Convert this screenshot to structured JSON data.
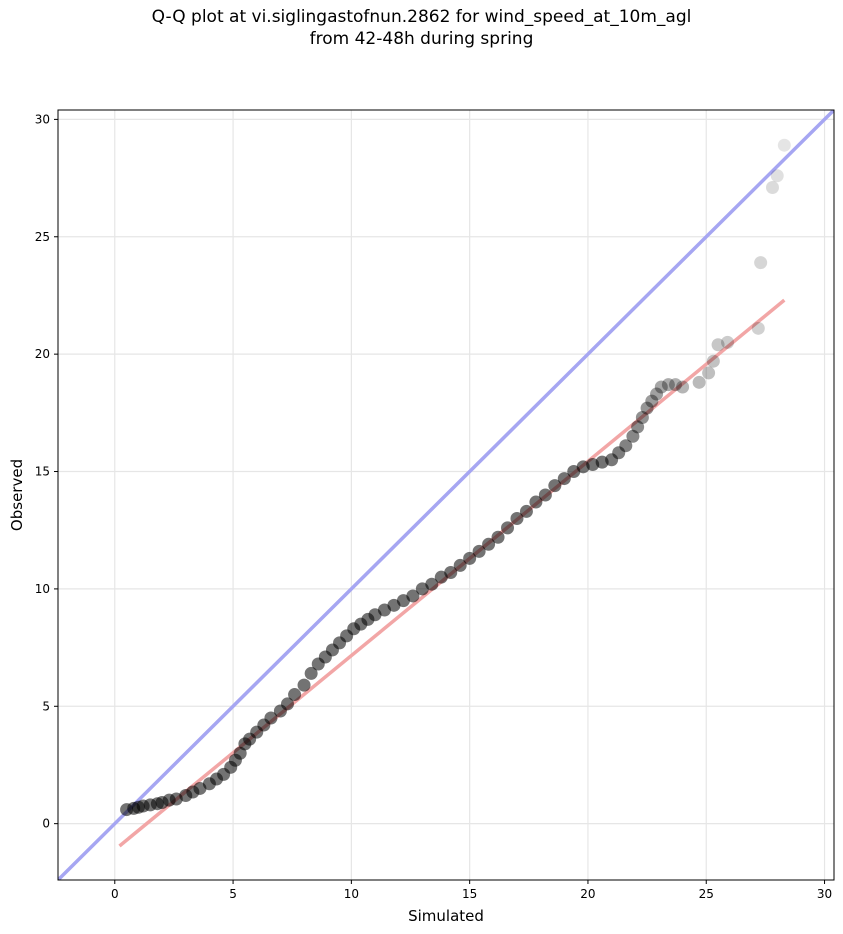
{
  "chart_data": {
    "type": "scatter",
    "title_line1": "Q-Q plot at vi.siglingastofnun.2862 for wind_speed_at_10m_agl",
    "title_line2": "from 42-48h during spring",
    "xlabel": "Simulated",
    "ylabel": "Observed",
    "xlim": [
      -2.4,
      30.4
    ],
    "ylim": [
      -2.4,
      30.4
    ],
    "xticks": [
      0,
      5,
      10,
      15,
      20,
      25,
      30
    ],
    "yticks": [
      0,
      5,
      10,
      15,
      20,
      25,
      30
    ],
    "grid": true,
    "colors": {
      "points": "#000000",
      "identity_line": "#a6a6f2",
      "fit_line": "#f2a6a6",
      "grid": "#e6e6e6"
    },
    "identity_line": {
      "x": [
        -2.4,
        30.4
      ],
      "y": [
        -2.4,
        30.4
      ]
    },
    "fit_line": {
      "x": [
        0.2,
        28.3
      ],
      "y": [
        -0.95,
        22.3
      ]
    },
    "series": [
      {
        "x": [
          0.5,
          0.8,
          1.0,
          1.2,
          1.5,
          1.8,
          2.0,
          2.3,
          2.6,
          3.0,
          3.3,
          3.6,
          4.0,
          4.3,
          4.6,
          4.9,
          5.1,
          5.3,
          5.5,
          5.7,
          6.0,
          6.3,
          6.6,
          7.0,
          7.3,
          7.6,
          8.0,
          8.3,
          8.6,
          8.9,
          9.2,
          9.5,
          9.8,
          10.1,
          10.4,
          10.7,
          11.0,
          11.4,
          11.8,
          12.2,
          12.6,
          13.0,
          13.4,
          13.8,
          14.2,
          14.6,
          15.0,
          15.4,
          15.8,
          16.2,
          16.6,
          17.0,
          17.4,
          17.8,
          18.2,
          18.6,
          19.0,
          19.4,
          19.8,
          20.2,
          20.6,
          21.0,
          21.3,
          21.6,
          21.9,
          22.1,
          22.3,
          22.5,
          22.7,
          22.9,
          23.1,
          23.4,
          23.7,
          24.0,
          24.7,
          25.1,
          25.3,
          25.5,
          25.9,
          27.2,
          27.3,
          27.8,
          28.0,
          28.3
        ],
        "y": [
          0.6,
          0.65,
          0.7,
          0.75,
          0.8,
          0.85,
          0.9,
          1.0,
          1.05,
          1.2,
          1.35,
          1.5,
          1.7,
          1.9,
          2.1,
          2.4,
          2.7,
          3.0,
          3.4,
          3.6,
          3.9,
          4.2,
          4.5,
          4.8,
          5.1,
          5.5,
          5.9,
          6.4,
          6.8,
          7.1,
          7.4,
          7.7,
          8.0,
          8.3,
          8.5,
          8.7,
          8.9,
          9.1,
          9.3,
          9.5,
          9.7,
          10.0,
          10.2,
          10.5,
          10.7,
          11.0,
          11.3,
          11.6,
          11.9,
          12.2,
          12.6,
          13.0,
          13.3,
          13.7,
          14.0,
          14.4,
          14.7,
          15.0,
          15.2,
          15.3,
          15.4,
          15.5,
          15.8,
          16.1,
          16.5,
          16.9,
          17.3,
          17.7,
          18.0,
          18.3,
          18.6,
          18.7,
          18.7,
          18.6,
          18.8,
          19.2,
          19.7,
          20.4,
          20.5,
          21.1,
          23.9,
          27.1,
          27.6,
          28.9
        ]
      }
    ]
  }
}
